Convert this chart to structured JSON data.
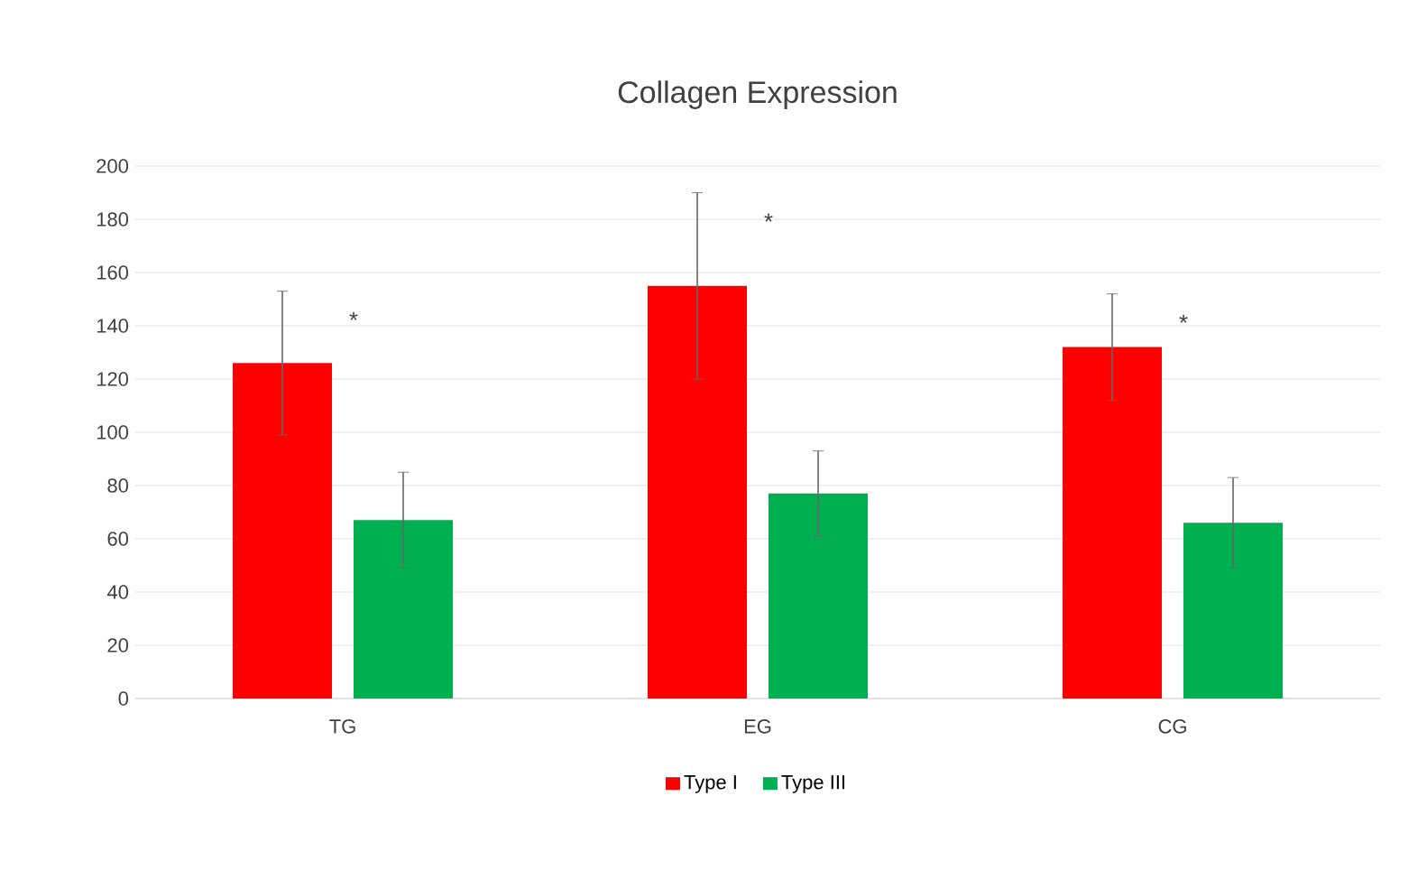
{
  "chart_data": {
    "type": "bar",
    "title": "Collagen Expression",
    "categories": [
      "TG",
      "EG",
      "CG"
    ],
    "series": [
      {
        "name": "Type I",
        "color": "#ff0000",
        "values": [
          126,
          155,
          132
        ],
        "errors": [
          27,
          35,
          20
        ]
      },
      {
        "name": "Type III",
        "color": "#00b050",
        "values": [
          67,
          77,
          66
        ],
        "errors": [
          18,
          16,
          17
        ]
      }
    ],
    "ylim": [
      0,
      200
    ],
    "yticks": [
      0,
      20,
      40,
      60,
      80,
      100,
      120,
      140,
      160,
      180,
      200
    ],
    "grid": "y",
    "legend": "bottom",
    "annotations": [
      "*",
      "*",
      "*"
    ]
  }
}
